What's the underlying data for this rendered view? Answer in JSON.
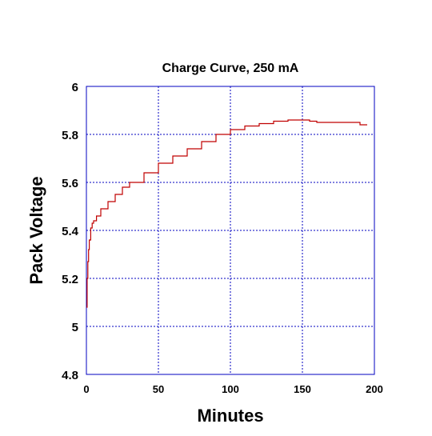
{
  "chart_data": {
    "type": "line",
    "title": "Charge Curve, 250 mA",
    "xlabel": "Minutes",
    "ylabel": "Pack Voltage",
    "xlim": [
      0,
      200
    ],
    "ylim": [
      4.8,
      6
    ],
    "xticks": [
      0,
      50,
      100,
      150,
      200
    ],
    "xtick_labels": [
      "0",
      "50",
      "100",
      "150",
      "200"
    ],
    "yticks": [
      4.8,
      5,
      5.2,
      5.4,
      5.6,
      5.8,
      6
    ],
    "ytick_labels": [
      "4.8",
      "5",
      "5.2",
      "5.4",
      "5.6",
      "5.8",
      "6"
    ],
    "grid": true,
    "grid_style": "dotted",
    "colors": {
      "series": "#c00000",
      "grid": "#0000c0",
      "frame": "#0000c0",
      "text": "#000000"
    },
    "series": [
      {
        "x": [
          0,
          0.5,
          1,
          1.5,
          2,
          3,
          4,
          5,
          7,
          10,
          15,
          20,
          25,
          30,
          40,
          50,
          60,
          70,
          80,
          90,
          100,
          110,
          120,
          130,
          140,
          145,
          150,
          155,
          160,
          170,
          180,
          185,
          190,
          195
        ],
        "y": [
          5.08,
          5.2,
          5.27,
          5.32,
          5.36,
          5.41,
          5.43,
          5.44,
          5.46,
          5.49,
          5.52,
          5.55,
          5.58,
          5.6,
          5.64,
          5.68,
          5.71,
          5.74,
          5.77,
          5.8,
          5.82,
          5.835,
          5.845,
          5.855,
          5.86,
          5.86,
          5.86,
          5.855,
          5.85,
          5.85,
          5.85,
          5.85,
          5.84,
          5.84
        ]
      }
    ]
  }
}
